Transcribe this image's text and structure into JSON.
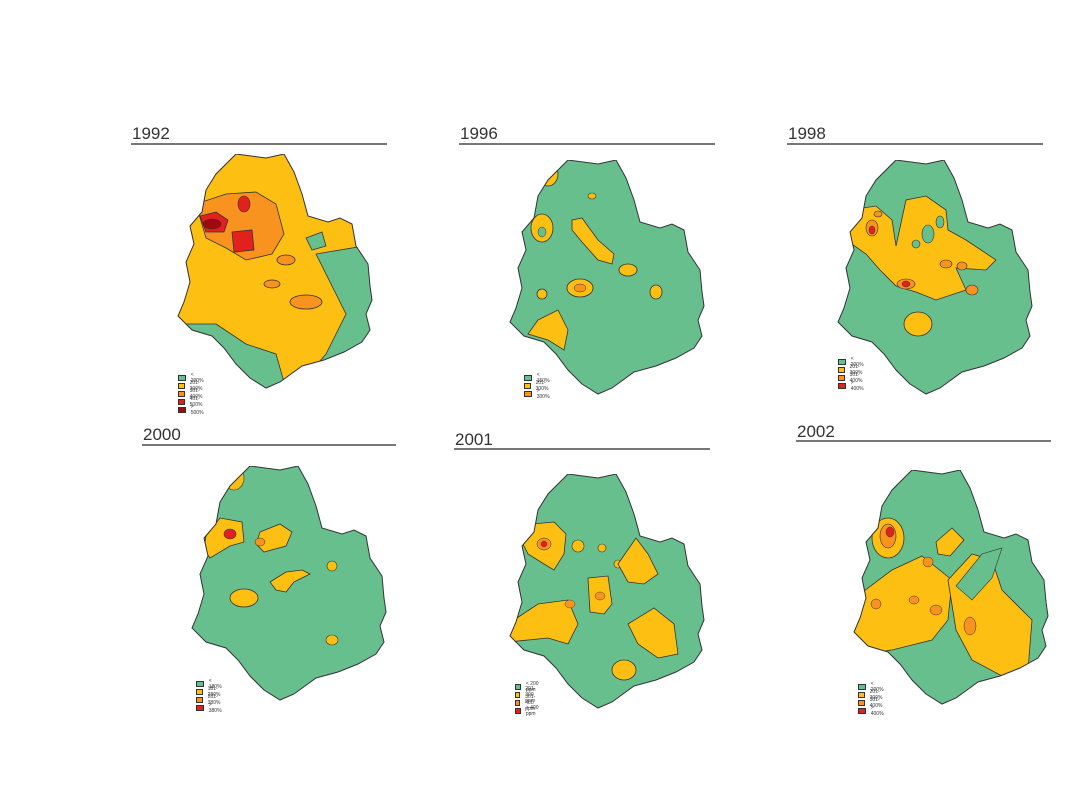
{
  "colors": {
    "green": "#66bf8c",
    "yellow": "#fdbf12",
    "orange": "#f7931e",
    "red": "#e2211c",
    "darkred": "#9e0b0f",
    "outline": "#333333"
  },
  "panels": [
    {
      "year": "1992",
      "legend": [
        {
          "label": "< 200%",
          "color": "#66bf8c"
        },
        {
          "label": "201-300%",
          "color": "#fdbf12"
        },
        {
          "label": "301-400%",
          "color": "#f7931e"
        },
        {
          "label": "401-500%",
          "color": "#e2211c"
        },
        {
          "label": "> 500%",
          "color": "#9e0b0f"
        }
      ]
    },
    {
      "year": "1996",
      "legend": [
        {
          "label": "< 150%",
          "color": "#66bf8c"
        },
        {
          "label": "201-300%",
          "color": "#fdbf12"
        },
        {
          "label": "> 300%",
          "color": "#f7931e"
        }
      ]
    },
    {
      "year": "1998",
      "legend": [
        {
          "label": "< 200%",
          "color": "#66bf8c"
        },
        {
          "label": "201-300%",
          "color": "#fdbf12"
        },
        {
          "label": "301-400%",
          "color": "#f7931e"
        },
        {
          "label": "> 400%",
          "color": "#e2211c"
        }
      ]
    },
    {
      "year": "2000",
      "legend": [
        {
          "label": "< 180%",
          "color": "#66bf8c"
        },
        {
          "label": "181-280%",
          "color": "#fdbf12"
        },
        {
          "label": "281-380%",
          "color": "#f7931e"
        },
        {
          "label": "> 380%",
          "color": "#e2211c"
        }
      ]
    },
    {
      "year": "2001",
      "legend": [
        {
          "label": "< 200 ppm",
          "color": "#66bf8c"
        },
        {
          "label": "201-300 ppm",
          "color": "#fdbf12"
        },
        {
          "label": "301-400 ppm",
          "color": "#f7931e"
        },
        {
          "label": "> 400 ppm",
          "color": "#e2211c"
        }
      ]
    },
    {
      "year": "2002",
      "legend": [
        {
          "label": "< 200%",
          "color": "#66bf8c"
        },
        {
          "label": "201-300%",
          "color": "#fdbf12"
        },
        {
          "label": "301-400%",
          "color": "#f7931e"
        },
        {
          "label": "> 400%",
          "color": "#e2211c"
        }
      ]
    }
  ]
}
